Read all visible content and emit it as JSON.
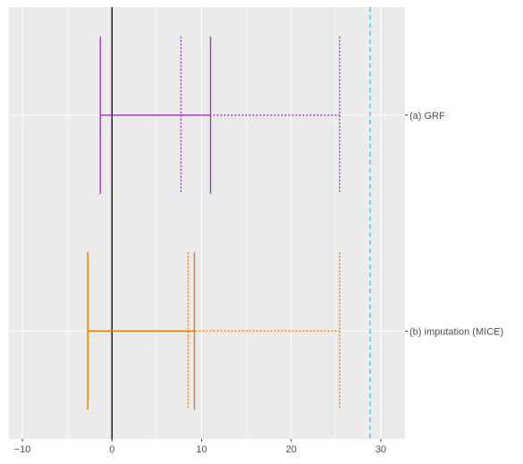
{
  "chart_data": {
    "type": "interval",
    "xlim": [
      -11.5,
      32.7
    ],
    "x_ticks": [
      -10,
      0,
      10,
      20,
      30
    ],
    "x_tick_labels": [
      "−10",
      "0",
      "10",
      "20",
      "30"
    ],
    "y_categories": [
      "(a) GRF",
      "(b) imputation (MICE)"
    ],
    "grid": true,
    "legend": "none",
    "reference_lines": [
      {
        "value": 0,
        "style": "solid",
        "color": "#000000"
      },
      {
        "value": 28.8,
        "style": "dashed",
        "color": "#17d4ec"
      }
    ],
    "series": [
      {
        "category": "(a) GRF",
        "color": "#9d3fb6",
        "solid_interval": [
          -1.3,
          11.0
        ],
        "dotted_interval": [
          7.7,
          25.4
        ]
      },
      {
        "category": "(b) imputation (MICE)",
        "color": "#f07d00",
        "solid_interval": [
          -2.7,
          9.2
        ],
        "dotted_interval": [
          8.5,
          25.4
        ]
      }
    ]
  }
}
